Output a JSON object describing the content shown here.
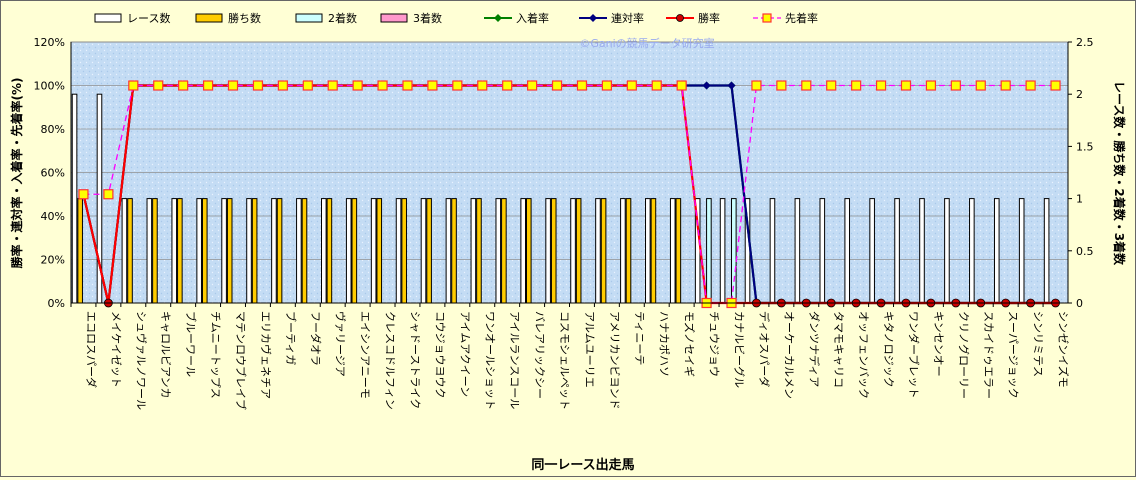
{
  "chart_data": {
    "type": "bar",
    "title": "",
    "watermark": "©Ganiの競馬データ研究室",
    "xlabel": "同一レース出走馬",
    "ylabel_left": "勝率・連対率・入着率・先着率(%)",
    "ylabel_right": "レース数・勝ち数・2着数・3着数",
    "ylim_left": [
      0,
      120
    ],
    "yticks_left": [
      "0%",
      "20%",
      "40%",
      "60%",
      "80%",
      "100%",
      "120%"
    ],
    "ylim_right": [
      0,
      2.5
    ],
    "yticks_right": [
      "0",
      "0.5",
      "1",
      "1.5",
      "2",
      "2.5"
    ],
    "legend_position": "top",
    "grid": true,
    "categories": [
      "エコロスパーダ",
      "メイケイゼット",
      "シュヴァルノワール",
      "キャロルビアンカ",
      "ブルーワール",
      "チムニートップス",
      "マテンロウブレイブ",
      "エリカヴェネチア",
      "ブーティガ",
      "フーダオラ",
      "ヴァリージア",
      "エイシンアニーモ",
      "クレスコドルフィン",
      "シャドーストライク",
      "コウジョウヨウク",
      "アイムアクイーン",
      "ワンオールショット",
      "アイルランスコール",
      "バレアリックシー",
      "コスモシェルペット",
      "アルムユーリエ",
      "アメリカンビヨンド",
      "ティニーテ",
      "ハナカポハソ",
      "モズノセイギ",
      "チュウジョウ",
      "カナルビーグル",
      "ディオスパーダ",
      "オーケーカルメン",
      "ダンツナディア",
      "タマモキャリコ",
      "オッフェンバック",
      "キタノロジック",
      "ワンダーブレット",
      "キンセンオー",
      "クリノグローリー",
      "スカイドゥエラー",
      "スーパージョック",
      "シンリミテス",
      "シンゼンイズモ"
    ],
    "series": [
      {
        "name": "レース数",
        "kind": "bar",
        "axis": "right",
        "color": "#ffffff",
        "values": [
          2,
          2,
          1,
          1,
          1,
          1,
          1,
          1,
          1,
          1,
          1,
          1,
          1,
          1,
          1,
          1,
          1,
          1,
          1,
          1,
          1,
          1,
          1,
          1,
          1,
          1,
          1,
          1,
          1,
          1,
          1,
          1,
          1,
          1,
          1,
          1,
          1,
          1,
          1,
          1
        ]
      },
      {
        "name": "勝ち数",
        "kind": "bar",
        "axis": "right",
        "color": "#ffcc00",
        "values": [
          1,
          0,
          1,
          1,
          1,
          1,
          1,
          1,
          1,
          1,
          1,
          1,
          1,
          1,
          1,
          1,
          1,
          1,
          1,
          1,
          1,
          1,
          1,
          1,
          1,
          0,
          0,
          0,
          0,
          0,
          0,
          0,
          0,
          0,
          0,
          0,
          0,
          0,
          0,
          0
        ]
      },
      {
        "name": "2着数",
        "kind": "bar",
        "axis": "right",
        "color": "#ccffff",
        "values": [
          0,
          0,
          0,
          0,
          0,
          0,
          0,
          0,
          0,
          0,
          0,
          0,
          0,
          0,
          0,
          0,
          0,
          0,
          0,
          0,
          0,
          0,
          0,
          0,
          0,
          1,
          1,
          0,
          0,
          0,
          0,
          0,
          0,
          0,
          0,
          0,
          0,
          0,
          0,
          0
        ]
      },
      {
        "name": "3着数",
        "kind": "bar",
        "axis": "right",
        "color": "#ff99cc",
        "values": [
          0,
          0,
          0,
          0,
          0,
          0,
          0,
          0,
          0,
          0,
          0,
          0,
          0,
          0,
          0,
          0,
          0,
          0,
          0,
          0,
          0,
          0,
          0,
          0,
          0,
          0,
          0,
          0,
          0,
          0,
          0,
          0,
          0,
          0,
          0,
          0,
          0,
          0,
          0,
          0
        ]
      },
      {
        "name": "入着率",
        "kind": "line",
        "axis": "left",
        "color": "#008000",
        "marker": "diamond",
        "values": [
          50,
          0,
          100,
          100,
          100,
          100,
          100,
          100,
          100,
          100,
          100,
          100,
          100,
          100,
          100,
          100,
          100,
          100,
          100,
          100,
          100,
          100,
          100,
          100,
          100,
          100,
          100,
          0,
          0,
          0,
          0,
          0,
          0,
          0,
          0,
          0,
          0,
          0,
          0,
          0
        ]
      },
      {
        "name": "連対率",
        "kind": "line",
        "axis": "left",
        "color": "#000080",
        "marker": "diamond",
        "values": [
          50,
          0,
          100,
          100,
          100,
          100,
          100,
          100,
          100,
          100,
          100,
          100,
          100,
          100,
          100,
          100,
          100,
          100,
          100,
          100,
          100,
          100,
          100,
          100,
          100,
          100,
          100,
          0,
          0,
          0,
          0,
          0,
          0,
          0,
          0,
          0,
          0,
          0,
          0,
          0
        ]
      },
      {
        "name": "勝率",
        "kind": "line",
        "axis": "left",
        "color": "#ff0000",
        "marker": "circle",
        "values": [
          50,
          0,
          100,
          100,
          100,
          100,
          100,
          100,
          100,
          100,
          100,
          100,
          100,
          100,
          100,
          100,
          100,
          100,
          100,
          100,
          100,
          100,
          100,
          100,
          100,
          0,
          0,
          0,
          0,
          0,
          0,
          0,
          0,
          0,
          0,
          0,
          0,
          0,
          0,
          0
        ]
      },
      {
        "name": "先着率",
        "kind": "line",
        "axis": "left",
        "color": "#ff00ff",
        "marker": "square",
        "dashed": true,
        "values": [
          50,
          50,
          100,
          100,
          100,
          100,
          100,
          100,
          100,
          100,
          100,
          100,
          100,
          100,
          100,
          100,
          100,
          100,
          100,
          100,
          100,
          100,
          100,
          100,
          100,
          0,
          0,
          100,
          100,
          100,
          100,
          100,
          100,
          100,
          100,
          100,
          100,
          100,
          100,
          100
        ]
      }
    ]
  }
}
